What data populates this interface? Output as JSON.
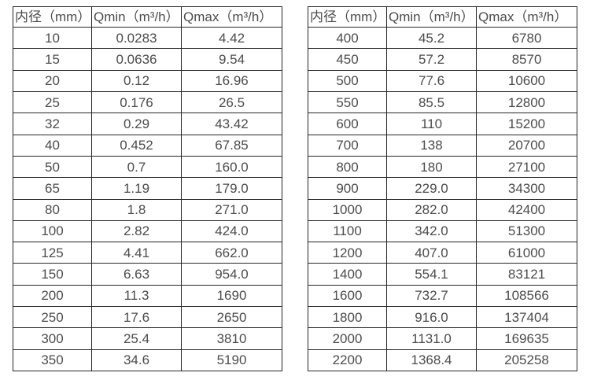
{
  "page": {
    "background": "#ffffff"
  },
  "colors": {
    "border": "#262626",
    "text": "#4c4c4c",
    "background": "#ffffff"
  },
  "chart_data": [
    {
      "type": "table",
      "title": "",
      "columns": [
        "内径（mm）",
        "Qmin（m³/h）",
        "Qmax（m³/h）"
      ],
      "rows": [
        [
          "10",
          "0.0283",
          "4.42"
        ],
        [
          "15",
          "0.0636",
          "9.54"
        ],
        [
          "20",
          "0.12",
          "16.96"
        ],
        [
          "25",
          "0.176",
          "26.5"
        ],
        [
          "32",
          "0.29",
          "43.42"
        ],
        [
          "40",
          "0.452",
          "67.85"
        ],
        [
          "50",
          "0.7",
          "160.0"
        ],
        [
          "65",
          "1.19",
          "179.0"
        ],
        [
          "80",
          "1.8",
          "271.0"
        ],
        [
          "100",
          "2.82",
          "424.0"
        ],
        [
          "125",
          "4.41",
          "662.0"
        ],
        [
          "150",
          "6.63",
          "954.0"
        ],
        [
          "200",
          "11.3",
          "1690"
        ],
        [
          "250",
          "17.6",
          "2650"
        ],
        [
          "300",
          "25.4",
          "3810"
        ],
        [
          "350",
          "34.6",
          "5190"
        ]
      ]
    },
    {
      "type": "table",
      "title": "",
      "columns": [
        "内径（mm）",
        "Qmin（m³/h）",
        "Qmax（m³/h）"
      ],
      "rows": [
        [
          "400",
          "45.2",
          "6780"
        ],
        [
          "450",
          "57.2",
          "8570"
        ],
        [
          "500",
          "77.6",
          "10600"
        ],
        [
          "550",
          "85.5",
          "12800"
        ],
        [
          "600",
          "110",
          "15200"
        ],
        [
          "700",
          "138",
          "20700"
        ],
        [
          "800",
          "180",
          "27100"
        ],
        [
          "900",
          "229.0",
          "34300"
        ],
        [
          "1000",
          "282.0",
          "42400"
        ],
        [
          "1100",
          "342.0",
          "51300"
        ],
        [
          "1200",
          "407.0",
          "61000"
        ],
        [
          "1400",
          "554.1",
          "83121"
        ],
        [
          "1600",
          "732.7",
          "108566"
        ],
        [
          "1800",
          "916.0",
          "137404"
        ],
        [
          "2000",
          "1131.0",
          "169635"
        ],
        [
          "2200",
          "1368.4",
          "205258"
        ]
      ]
    }
  ]
}
